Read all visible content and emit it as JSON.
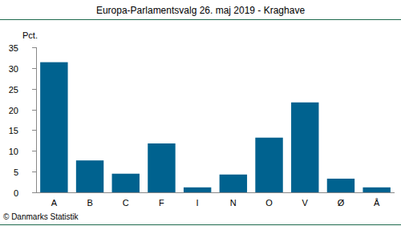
{
  "chart_data": {
    "type": "bar",
    "title": "Europa-Parlamentsvalg 26. maj 2019 - Kraghave",
    "y_label": "Pct.",
    "source": "© Danmarks Statistik",
    "categories": [
      "A",
      "B",
      "C",
      "F",
      "I",
      "N",
      "O",
      "V",
      "Ø",
      "Å"
    ],
    "values": [
      31.4,
      7.7,
      4.5,
      11.8,
      1.2,
      4.3,
      13.2,
      21.7,
      3.3,
      1.2
    ],
    "color": "#00628f",
    "ylim": [
      0,
      35
    ],
    "yticks": [
      0,
      5,
      10,
      15,
      20,
      25,
      30,
      35
    ],
    "grid": false
  }
}
